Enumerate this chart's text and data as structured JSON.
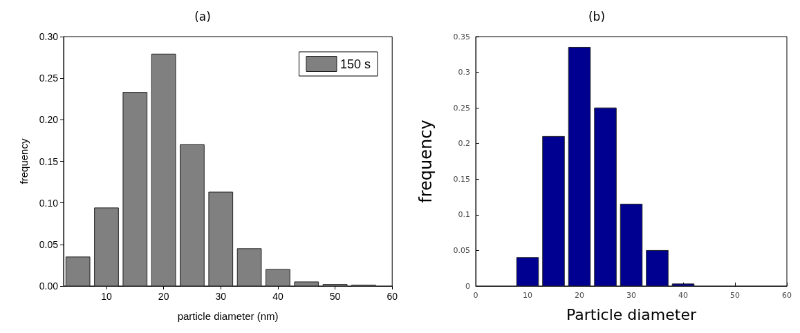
{
  "chart_data": [
    {
      "type": "histogram",
      "title": "(a)",
      "xlabel": "particle diameter (nm)",
      "ylabel": "frequency",
      "bins": [
        2.5,
        7.5,
        12.5,
        17.5,
        22.5,
        27.5,
        32.5,
        37.5,
        42.5,
        47.5,
        52.5,
        57.5
      ],
      "series": [
        {
          "name": "150 s",
          "color": "#808080",
          "values": [
            0.035,
            0.094,
            0.233,
            0.279,
            0.17,
            0.113,
            0.045,
            0.02,
            0.005,
            0.002,
            0.001
          ]
        }
      ],
      "xlim": [
        2.5,
        60
      ],
      "xticks": [
        10,
        20,
        30,
        40,
        50,
        60
      ],
      "ylim": [
        0,
        0.3
      ],
      "yticks": [
        {
          "value": 0,
          "label": "0.00"
        },
        {
          "value": 0.05,
          "label": "0.05"
        },
        {
          "value": 0.1,
          "label": "0.10"
        },
        {
          "value": 0.15,
          "label": "0.15"
        },
        {
          "value": 0.2,
          "label": "0.20"
        },
        {
          "value": 0.25,
          "label": "0.25"
        },
        {
          "value": 0.3,
          "label": "0.30"
        }
      ],
      "legend": "top right",
      "grid": false
    },
    {
      "type": "histogram",
      "title": "(b)",
      "xlabel": "Particle diameter",
      "ylabel": "frequency",
      "bins": [
        7.5,
        12.5,
        17.5,
        22.5,
        27.5,
        32.5,
        37.5,
        42.5
      ],
      "series": [
        {
          "color": "#000090",
          "values": [
            0.04,
            0.21,
            0.335,
            0.25,
            0.115,
            0.05,
            0.003
          ]
        }
      ],
      "xlim": [
        0,
        60
      ],
      "xticks": [
        0,
        10,
        20,
        30,
        40,
        50,
        60
      ],
      "ylim": [
        0,
        0.35
      ],
      "yticks": [
        0,
        0.05,
        0.1,
        0.15,
        0.2,
        0.25,
        0.3,
        0.35
      ],
      "legend": false,
      "grid": false
    }
  ]
}
